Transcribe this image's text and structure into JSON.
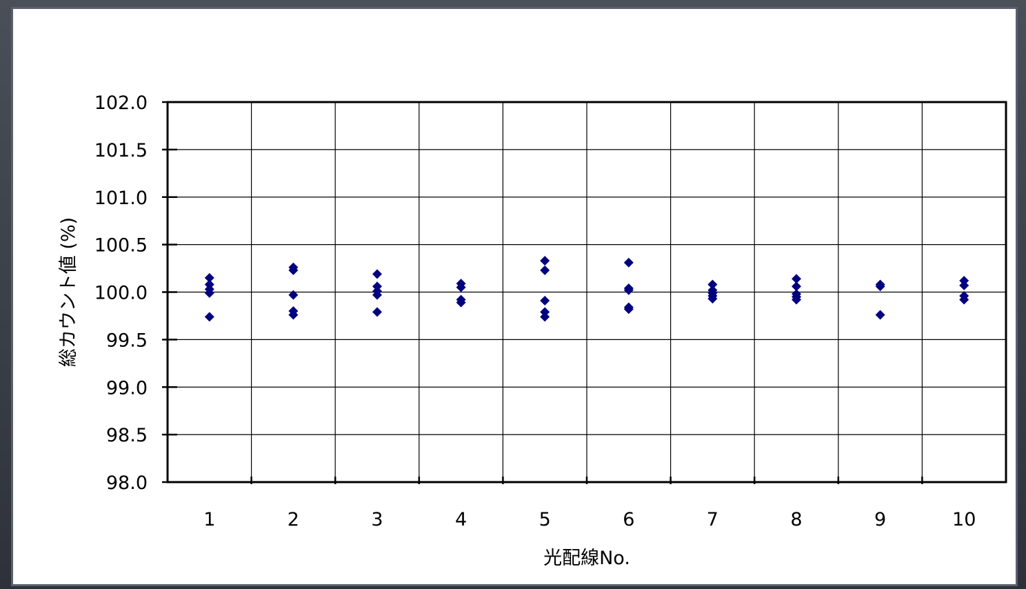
{
  "chart_data": {
    "type": "scatter",
    "xlabel": "光配線No.",
    "ylabel": "総カウント値 (%)",
    "categories": [
      "1",
      "2",
      "3",
      "4",
      "5",
      "6",
      "7",
      "8",
      "9",
      "10"
    ],
    "ylim": [
      98.0,
      102.0
    ],
    "yticks": [
      "102.0",
      "101.5",
      "101.0",
      "100.5",
      "100.0",
      "99.5",
      "99.0",
      "98.5",
      "98.0"
    ],
    "grid": true,
    "legend": "none",
    "marker": "diamond",
    "marker_color": "#000080",
    "points": [
      {
        "x": "1",
        "y": 100.15
      },
      {
        "x": "1",
        "y": 100.08
      },
      {
        "x": "1",
        "y": 100.03
      },
      {
        "x": "1",
        "y": 99.99
      },
      {
        "x": "1",
        "y": 99.74
      },
      {
        "x": "2",
        "y": 100.26
      },
      {
        "x": "2",
        "y": 100.23
      },
      {
        "x": "2",
        "y": 99.97
      },
      {
        "x": "2",
        "y": 99.8
      },
      {
        "x": "2",
        "y": 99.76
      },
      {
        "x": "3",
        "y": 100.19
      },
      {
        "x": "3",
        "y": 100.06
      },
      {
        "x": "3",
        "y": 100.01
      },
      {
        "x": "3",
        "y": 99.97
      },
      {
        "x": "3",
        "y": 99.79
      },
      {
        "x": "4",
        "y": 100.09
      },
      {
        "x": "4",
        "y": 100.05
      },
      {
        "x": "4",
        "y": 99.92
      },
      {
        "x": "4",
        "y": 99.89
      },
      {
        "x": "5",
        "y": 100.33
      },
      {
        "x": "5",
        "y": 100.23
      },
      {
        "x": "5",
        "y": 99.91
      },
      {
        "x": "5",
        "y": 99.79
      },
      {
        "x": "5",
        "y": 99.74
      },
      {
        "x": "6",
        "y": 100.31
      },
      {
        "x": "6",
        "y": 100.04
      },
      {
        "x": "6",
        "y": 100.02
      },
      {
        "x": "6",
        "y": 99.84
      },
      {
        "x": "6",
        "y": 99.82
      },
      {
        "x": "7",
        "y": 100.08
      },
      {
        "x": "7",
        "y": 100.02
      },
      {
        "x": "7",
        "y": 99.99
      },
      {
        "x": "7",
        "y": 99.96
      },
      {
        "x": "7",
        "y": 99.93
      },
      {
        "x": "8",
        "y": 100.14
      },
      {
        "x": "8",
        "y": 100.06
      },
      {
        "x": "8",
        "y": 99.98
      },
      {
        "x": "8",
        "y": 99.95
      },
      {
        "x": "8",
        "y": 99.92
      },
      {
        "x": "9",
        "y": 100.08
      },
      {
        "x": "9",
        "y": 100.06
      },
      {
        "x": "9",
        "y": 99.76
      },
      {
        "x": "10",
        "y": 100.12
      },
      {
        "x": "10",
        "y": 100.07
      },
      {
        "x": "10",
        "y": 99.96
      },
      {
        "x": "10",
        "y": 99.92
      }
    ]
  }
}
